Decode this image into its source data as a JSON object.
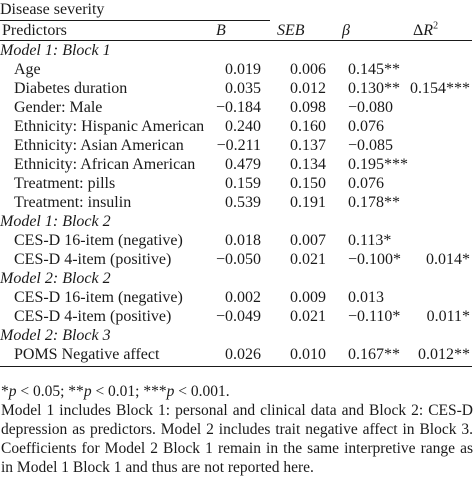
{
  "table": {
    "group_header": "Disease severity",
    "columns": {
      "predictors": "Predictors",
      "b": "B",
      "seb": "SEB",
      "beta": "β",
      "delta_r2": "ΔR²"
    },
    "sections": [
      {
        "title": "Model 1: Block 1",
        "rows": [
          {
            "name": "Age",
            "b": "0.019",
            "seb": "0.006",
            "beta": "0.145**",
            "dr2": ""
          },
          {
            "name": "Diabetes duration",
            "b": "0.035",
            "seb": "0.012",
            "beta": "0.130**",
            "dr2": "0.154***"
          },
          {
            "name": "Gender: Male",
            "b": "−0.184",
            "seb": "0.098",
            "beta": "−0.080",
            "dr2": ""
          },
          {
            "name": "Ethnicity: Hispanic American",
            "b": "0.240",
            "seb": "0.160",
            "beta": "0.076",
            "dr2": ""
          },
          {
            "name": "Ethnicity: Asian American",
            "b": "−0.211",
            "seb": "0.137",
            "beta": "−0.085",
            "dr2": ""
          },
          {
            "name": "Ethnicity: African American",
            "b": "0.479",
            "seb": "0.134",
            "beta": "0.195***",
            "dr2": ""
          },
          {
            "name": "Treatment: pills",
            "b": "0.159",
            "seb": "0.150",
            "beta": "0.076",
            "dr2": ""
          },
          {
            "name": "Treatment: insulin",
            "b": "0.539",
            "seb": "0.191",
            "beta": "0.178**",
            "dr2": ""
          }
        ]
      },
      {
        "title": "Model 1: Block 2",
        "rows": [
          {
            "name": "CES-D 16-item (negative)",
            "b": "0.018",
            "seb": "0.007",
            "beta": "0.113*",
            "dr2": ""
          },
          {
            "name": "CES-D 4-item (positive)",
            "b": "−0.050",
            "seb": "0.021",
            "beta": "−0.100*",
            "dr2": "0.014*"
          }
        ]
      },
      {
        "title": "Model 2: Block 2",
        "rows": [
          {
            "name": "CES-D 16-item (negative)",
            "b": "0.002",
            "seb": "0.009",
            "beta": "0.013",
            "dr2": ""
          },
          {
            "name": "CES-D 4-item (positive)",
            "b": "−0.049",
            "seb": "0.021",
            "beta": "−0.110*",
            "dr2": "0.011*"
          }
        ]
      },
      {
        "title": "Model 2: Block 3",
        "rows": [
          {
            "name": "POMS Negative affect",
            "b": "0.026",
            "seb": "0.010",
            "beta": "0.167**",
            "dr2": "0.012**"
          }
        ]
      }
    ]
  },
  "notes": {
    "significance": "*p < 0.05; **p < 0.01; ***p < 0.001.",
    "explanation": "Model 1 includes Block 1: personal and clinical data and Block 2: CES-D depression as predictors. Model 2 includes trait negative affect in Block 3. Coefficients for Model 2 Block 1 remain in the same interpretive range as in Model 1 Block 1 and thus are not reported here."
  }
}
